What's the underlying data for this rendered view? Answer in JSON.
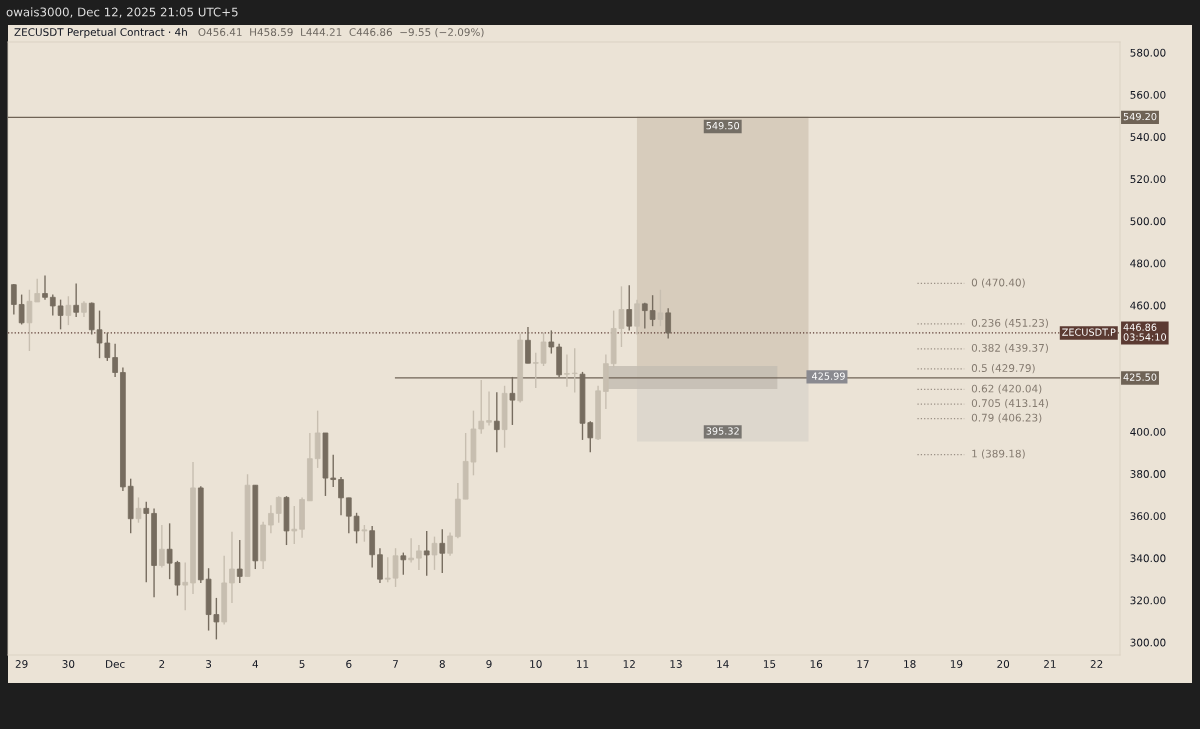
{
  "chart_data": {
    "type": "candlestick",
    "title": "ZECUSDT Perpetual Contract · 4h",
    "subtitle": "O456.41  H458.59  L444.21  C446.86  −9.55 (−2.09%)",
    "annotations": [
      "owais3000, Dec 12, 2025 21:05 UTC+5",
      {
        "text": "ZECUSDT.P",
        "y": 446.86
      },
      {
        "text": "425.99",
        "x": "2025-12-15T20:00",
        "y": 425.99
      }
    ],
    "series": [
      {
        "type": "bar",
        "x": [
          "2025-12-13T08:00"
        ],
        "base": [
          420.3
        ],
        "values": [
          10.9
        ],
        "color": "#c4bdb3"
      },
      {
        "type": "bar",
        "x": [
          "2025-12-14T00:00"
        ],
        "base": [
          425.99
        ],
        "values": [
          123.51
        ],
        "value_labels": [
          "549.50"
        ],
        "color": "#d3c8b7"
      },
      {
        "type": "bar",
        "x": [
          "2025-12-14T00:00"
        ],
        "base": [
          425.99
        ],
        "values": [
          -30.67
        ],
        "value_labels": [
          "395.32"
        ],
        "color": "#dad5cb"
      },
      {
        "type": "line",
        "x": [
          "2025-12-07T00:00",
          "2025-12-22T12:00"
        ],
        "values": [
          425.5,
          425.5
        ],
        "value_labels": [
          null,
          "425.50"
        ],
        "color": "#6f6356",
        "line_style": "solid"
      },
      {
        "type": "line",
        "x": [
          "2025-12-18T04:00",
          "2025-12-19T04:00"
        ],
        "values": [
          470.4,
          470.4
        ],
        "value_labels": [
          null,
          "0 (470.40)"
        ],
        "color": "#9a9085",
        "line_style": "dotted"
      },
      {
        "type": "line",
        "x": [
          "2025-12-18T04:00",
          "2025-12-19T04:00"
        ],
        "values": [
          451.23,
          451.23
        ],
        "value_labels": [
          null,
          "0.236 (451.23)"
        ],
        "color": "#9a9085",
        "line_style": "dotted"
      },
      {
        "type": "line",
        "x": [
          "2025-12-18T04:00",
          "2025-12-19T04:00"
        ],
        "values": [
          439.37,
          439.37
        ],
        "value_labels": [
          null,
          "0.382 (439.37)"
        ],
        "color": "#9a9085",
        "line_style": "dotted"
      },
      {
        "type": "line",
        "x": [
          "2025-12-18T04:00",
          "2025-12-19T04:00"
        ],
        "values": [
          429.79,
          429.79
        ],
        "value_labels": [
          null,
          "0.5 (429.79)"
        ],
        "color": "#9a9085",
        "line_style": "dotted"
      },
      {
        "type": "line",
        "x": [
          "2025-12-18T04:00",
          "2025-12-19T04:00"
        ],
        "values": [
          420.04,
          420.04
        ],
        "value_labels": [
          null,
          "0.62 (420.04)"
        ],
        "color": "#9a9085",
        "line_style": "dotted"
      },
      {
        "type": "line",
        "x": [
          "2025-12-18T04:00",
          "2025-12-19T04:00"
        ],
        "values": [
          413.14,
          413.14
        ],
        "value_labels": [
          null,
          "0.705 (413.14)"
        ],
        "color": "#9a9085",
        "line_style": "dotted"
      },
      {
        "type": "line",
        "x": [
          "2025-12-18T04:00",
          "2025-12-19T04:00"
        ],
        "values": [
          406.23,
          406.23
        ],
        "value_labels": [
          null,
          "0.79 (406.23)"
        ],
        "color": "#9a9085",
        "line_style": "dotted"
      },
      {
        "type": "line",
        "x": [
          "2025-12-18T04:00",
          "2025-12-19T04:00"
        ],
        "values": [
          389.18,
          389.18
        ],
        "value_labels": [
          null,
          "1 (389.18)"
        ],
        "color": "#9a9085",
        "line_style": "dotted"
      }
    ],
    "x": [
      "2025-11-28T20:00",
      "2025-11-29T00:00",
      "2025-11-29T04:00",
      "2025-11-29T08:00",
      "2025-11-29T12:00",
      "2025-11-29T16:00",
      "2025-11-29T20:00",
      "2025-11-30T00:00",
      "2025-11-30T04:00",
      "2025-11-30T08:00",
      "2025-11-30T12:00",
      "2025-11-30T16:00",
      "2025-11-30T20:00",
      "2025-12-01T00:00",
      "2025-12-01T04:00",
      "2025-12-01T08:00",
      "2025-12-01T12:00",
      "2025-12-01T16:00",
      "2025-12-01T20:00",
      "2025-12-02T00:00",
      "2025-12-02T04:00",
      "2025-12-02T08:00",
      "2025-12-02T12:00",
      "2025-12-02T16:00",
      "2025-12-02T20:00",
      "2025-12-03T00:00",
      "2025-12-03T04:00",
      "2025-12-03T08:00",
      "2025-12-03T12:00",
      "2025-12-03T16:00",
      "2025-12-03T20:00",
      "2025-12-04T00:00",
      "2025-12-04T04:00",
      "2025-12-04T08:00",
      "2025-12-04T12:00",
      "2025-12-04T16:00",
      "2025-12-04T20:00",
      "2025-12-05T00:00",
      "2025-12-05T04:00",
      "2025-12-05T08:00",
      "2025-12-05T12:00",
      "2025-12-05T16:00",
      "2025-12-05T20:00",
      "2025-12-06T00:00",
      "2025-12-06T04:00",
      "2025-12-06T08:00",
      "2025-12-06T12:00",
      "2025-12-06T16:00",
      "2025-12-06T20:00",
      "2025-12-07T00:00",
      "2025-12-07T04:00",
      "2025-12-07T08:00",
      "2025-12-07T12:00",
      "2025-12-07T16:00",
      "2025-12-07T20:00",
      "2025-12-08T00:00",
      "2025-12-08T04:00",
      "2025-12-08T08:00",
      "2025-12-08T12:00",
      "2025-12-08T16:00",
      "2025-12-08T20:00",
      "2025-12-09T00:00",
      "2025-12-09T04:00",
      "2025-12-09T08:00",
      "2025-12-09T12:00",
      "2025-12-09T16:00",
      "2025-12-09T20:00",
      "2025-12-10T00:00",
      "2025-12-10T04:00",
      "2025-12-10T08:00",
      "2025-12-10T12:00",
      "2025-12-10T16:00",
      "2025-12-10T20:00",
      "2025-12-11T00:00",
      "2025-12-11T04:00",
      "2025-12-11T08:00",
      "2025-12-11T12:00",
      "2025-12-11T16:00",
      "2025-12-11T20:00",
      "2025-12-12T00:00",
      "2025-12-12T04:00",
      "2025-12-12T08:00",
      "2025-12-12T12:00",
      "2025-12-12T16:00",
      "2025-12-12T20:00"
    ],
    "ohlc": [
      [
        469.8,
        470.1,
        455.6,
        460.4
      ],
      [
        460.4,
        465.1,
        450.9,
        451.7
      ],
      [
        451.7,
        467.4,
        438.3,
        461.9
      ],
      [
        461.6,
        472.6,
        461.6,
        465.6
      ],
      [
        465.6,
        474.2,
        462.7,
        463.8
      ],
      [
        463.8,
        465.1,
        455.2,
        459.7
      ],
      [
        459.7,
        462.7,
        448.6,
        455.2
      ],
      [
        455.2,
        464.3,
        450.6,
        460.0
      ],
      [
        460.0,
        470.3,
        454.5,
        456.7
      ],
      [
        456.7,
        461.9,
        454.5,
        461.0
      ],
      [
        461.0,
        461.3,
        446.2,
        448.4
      ],
      [
        448.4,
        457.5,
        434.9,
        442.1
      ],
      [
        442.1,
        447.0,
        433.6,
        435.2
      ],
      [
        435.2,
        441.8,
        426.0,
        428.1
      ],
      [
        428.1,
        430.5,
        371.9,
        373.8
      ],
      [
        374.1,
        377.7,
        351.8,
        358.7
      ],
      [
        358.7,
        368.8,
        356.8,
        363.6
      ],
      [
        363.6,
        366.7,
        328.5,
        361.2
      ],
      [
        361.2,
        363.6,
        321.4,
        336.5
      ],
      [
        336.5,
        355.7,
        335.5,
        344.2
      ],
      [
        344.2,
        356.5,
        330.0,
        337.6
      ],
      [
        337.9,
        338.7,
        322.2,
        327.2
      ],
      [
        327.2,
        337.9,
        315.2,
        328.5
      ],
      [
        328.2,
        385.6,
        323.0,
        373.3
      ],
      [
        373.3,
        374.1,
        328.2,
        329.7
      ],
      [
        330.0,
        335.2,
        305.6,
        313.2
      ],
      [
        313.2,
        321.1,
        301.4,
        309.7
      ],
      [
        309.7,
        341.1,
        308.5,
        328.2
      ],
      [
        328.2,
        352.5,
        318.7,
        334.8
      ],
      [
        334.8,
        348.6,
        328.2,
        331.3
      ],
      [
        331.3,
        379.8,
        331.3,
        374.6
      ],
      [
        374.6,
        374.6,
        334.8,
        338.7
      ],
      [
        338.7,
        357.3,
        334.8,
        355.7
      ],
      [
        355.7,
        365.1,
        351.8,
        361.2
      ],
      [
        361.2,
        369.4,
        356.8,
        368.8
      ],
      [
        368.8,
        369.4,
        346.2,
        352.9
      ],
      [
        352.9,
        364.7,
        346.7,
        353.7
      ],
      [
        353.7,
        368.8,
        349.7,
        367.8
      ],
      [
        367.2,
        399.4,
        367.2,
        387.2
      ],
      [
        387.2,
        410.0,
        382.8,
        399.4
      ],
      [
        399.4,
        399.4,
        369.5,
        378.0
      ],
      [
        378.0,
        389.1,
        373.8,
        377.3
      ],
      [
        377.3,
        378.5,
        360.4,
        368.6
      ],
      [
        368.6,
        368.6,
        351.8,
        359.9
      ],
      [
        359.9,
        361.5,
        347.0,
        352.9
      ],
      [
        352.9,
        355.7,
        347.8,
        353.4
      ],
      [
        353.0,
        355.2,
        335.5,
        341.6
      ],
      [
        341.6,
        344.7,
        328.2,
        330.0
      ],
      [
        330.0,
        340.4,
        328.5,
        330.5
      ],
      [
        330.5,
        344.7,
        326.3,
        341.1
      ],
      [
        341.1,
        342.6,
        332.1,
        339.2
      ],
      [
        339.2,
        349.4,
        337.9,
        340.0
      ],
      [
        340.0,
        346.2,
        334.4,
        343.4
      ],
      [
        343.4,
        352.9,
        331.6,
        341.5
      ],
      [
        341.5,
        350.2,
        334.4,
        347.0
      ],
      [
        347.0,
        353.7,
        332.9,
        342.3
      ],
      [
        342.3,
        352.1,
        341.1,
        350.5
      ],
      [
        350.2,
        375.7,
        349.4,
        368.0
      ],
      [
        368.0,
        399.4,
        368.0,
        385.9
      ],
      [
        385.6,
        410.0,
        379.3,
        401.3
      ],
      [
        401.3,
        424.5,
        399.0,
        405.0
      ],
      [
        404.5,
        419.1,
        402.9,
        405.3
      ],
      [
        405.0,
        418.7,
        390.3,
        401.0
      ],
      [
        401.0,
        421.8,
        392.4,
        418.2
      ],
      [
        418.2,
        426.0,
        403.2,
        415.0
      ],
      [
        414.7,
        446.5,
        413.9,
        443.5
      ],
      [
        443.4,
        449.7,
        432.5,
        432.5
      ],
      [
        432.5,
        437.5,
        420.7,
        432.8
      ],
      [
        432.5,
        447.0,
        431.2,
        442.6
      ],
      [
        442.6,
        448.1,
        437.1,
        440.2
      ],
      [
        440.2,
        441.8,
        426.0,
        427.0
      ],
      [
        427.3,
        436.7,
        421.3,
        427.6
      ],
      [
        427.6,
        439.6,
        418.6,
        427.8
      ],
      [
        427.3,
        428.4,
        396.1,
        404.0
      ],
      [
        404.3,
        405.0,
        390.3,
        397.1
      ],
      [
        396.6,
        421.8,
        396.1,
        419.4
      ],
      [
        419.1,
        436.7,
        410.8,
        432.3
      ],
      [
        432.3,
        457.5,
        430.5,
        449.0
      ],
      [
        449.0,
        469.0,
        440.2,
        458.0
      ],
      [
        458.0,
        469.5,
        448.1,
        450.1
      ],
      [
        450.1,
        462.7,
        446.2,
        460.7
      ],
      [
        460.7,
        461.2,
        449.0,
        457.5
      ],
      [
        457.5,
        464.8,
        450.1,
        453.3
      ],
      [
        453.3,
        467.4,
        450.1,
        456.41
      ],
      [
        456.41,
        458.59,
        444.21,
        446.86
      ]
    ],
    "colors": [
      "#766c5f",
      "#766c5f",
      "#c7beb0",
      "#c7beb0",
      "#766c5f",
      "#766c5f",
      "#766c5f",
      "#c7beb0",
      "#766c5f",
      "#c7beb0",
      "#766c5f",
      "#766c5f",
      "#766c5f",
      "#766c5f",
      "#766c5f",
      "#766c5f",
      "#c7beb0",
      "#766c5f",
      "#766c5f",
      "#c7beb0",
      "#766c5f",
      "#766c5f",
      "#c7beb0",
      "#c7beb0",
      "#766c5f",
      "#766c5f",
      "#766c5f",
      "#c7beb0",
      "#c7beb0",
      "#766c5f",
      "#c7beb0",
      "#766c5f",
      "#c7beb0",
      "#c7beb0",
      "#c7beb0",
      "#766c5f",
      "#c7beb0",
      "#c7beb0",
      "#c7beb0",
      "#c7beb0",
      "#766c5f",
      "#766c5f",
      "#766c5f",
      "#766c5f",
      "#766c5f",
      "#c7beb0",
      "#766c5f",
      "#766c5f",
      "#c7beb0",
      "#c7beb0",
      "#766c5f",
      "#c7beb0",
      "#c7beb0",
      "#766c5f",
      "#c7beb0",
      "#766c5f",
      "#c7beb0",
      "#c7beb0",
      "#c7beb0",
      "#c7beb0",
      "#c7beb0",
      "#c7beb0",
      "#766c5f",
      "#c7beb0",
      "#766c5f",
      "#c7beb0",
      "#766c5f",
      "#c7beb0",
      "#c7beb0",
      "#766c5f",
      "#766c5f",
      "#c7beb0",
      "#c7beb0",
      "#766c5f",
      "#766c5f",
      "#c7beb0",
      "#c7beb0",
      "#c7beb0",
      "#c7beb0",
      "#766c5f",
      "#c7beb0",
      "#766c5f",
      "#766c5f",
      "#c7beb0",
      "#766c5f"
    ],
    "xlim": [
      "2025-11-28T17:00",
      "2025-12-22T12:00"
    ],
    "xticks": [
      {
        "value": "2025-11-29",
        "label": "29"
      },
      {
        "value": "2025-11-30",
        "label": "30"
      },
      {
        "value": "2025-12-01",
        "label": "Dec"
      },
      {
        "value": "2025-12-02",
        "label": "2"
      },
      {
        "value": "2025-12-03",
        "label": "3"
      },
      {
        "value": "2025-12-04",
        "label": "4"
      },
      {
        "value": "2025-12-05",
        "label": "5"
      },
      {
        "value": "2025-12-06",
        "label": "6"
      },
      {
        "value": "2025-12-07",
        "label": "7"
      },
      {
        "value": "2025-12-08",
        "label": "8"
      },
      {
        "value": "2025-12-09",
        "label": "9"
      },
      {
        "value": "2025-12-10",
        "label": "10"
      },
      {
        "value": "2025-12-11",
        "label": "11"
      },
      {
        "value": "2025-12-12",
        "label": "12"
      },
      {
        "value": "2025-12-13",
        "label": "13"
      },
      {
        "value": "2025-12-14",
        "label": "14"
      },
      {
        "value": "2025-12-15",
        "label": "15"
      },
      {
        "value": "2025-12-16",
        "label": "16"
      },
      {
        "value": "2025-12-17",
        "label": "17"
      },
      {
        "value": "2025-12-18",
        "label": "18"
      },
      {
        "value": "2025-12-19",
        "label": "19"
      },
      {
        "value": "2025-12-20",
        "label": "20"
      },
      {
        "value": "2025-12-21",
        "label": "21"
      },
      {
        "value": "2025-12-22",
        "label": "22"
      }
    ],
    "ylim": [
      294,
      585
    ],
    "yticks": [
      {
        "value": 300,
        "label": "300.00"
      },
      {
        "value": 320,
        "label": "320.00"
      },
      {
        "value": 340,
        "label": "340.00"
      },
      {
        "value": 360,
        "label": "360.00"
      },
      {
        "value": 380,
        "label": "380.00"
      },
      {
        "value": 400,
        "label": "400.00"
      },
      {
        "value": 460,
        "label": "460.00"
      },
      {
        "value": 480,
        "label": "480.00"
      },
      {
        "value": 500,
        "label": "500.00"
      },
      {
        "value": 520,
        "label": "520.00"
      },
      {
        "value": 540,
        "label": "540.00"
      },
      {
        "value": 560,
        "label": "560.00"
      },
      {
        "value": 580,
        "label": "580.00"
      }
    ],
    "ref_lines": [
      {
        "axis": "y",
        "value": 549.2,
        "label": "549.20",
        "color": "#6f6356",
        "line_style": "solid"
      },
      {
        "axis": "y",
        "value": 446.86,
        "label": "446.86\n03:54:10",
        "color": "#5b3a32",
        "line_style": "dotted"
      }
    ]
  }
}
